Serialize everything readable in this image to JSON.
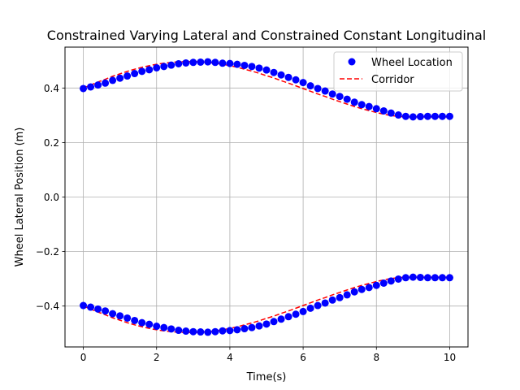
{
  "chart_data": {
    "type": "line",
    "title": "Constrained Varying Lateral and Constrained Constant Longitudinal",
    "xlabel": "Time(s)",
    "ylabel": "Wheel Lateral Position (m)",
    "xlim": [
      -0.5,
      10.5
    ],
    "ylim": [
      -0.55,
      0.55
    ],
    "xticks": [
      0,
      2,
      4,
      6,
      8,
      10
    ],
    "xtick_labels": [
      "0",
      "2",
      "4",
      "6",
      "8",
      "10"
    ],
    "yticks": [
      -0.4,
      -0.2,
      0.0,
      0.2,
      0.4
    ],
    "ytick_labels": [
      "−0.4",
      "−0.2",
      "0.0",
      "0.2",
      "0.4"
    ],
    "grid": true,
    "legend_position": "top-right",
    "legend": [
      {
        "label": "Wheel Location",
        "marker": "circle",
        "color": "#0000ff"
      },
      {
        "label": "Corridor",
        "linestyle": "dashed",
        "color": "#ff0000"
      }
    ],
    "x": [
      0.0,
      0.2,
      0.4,
      0.6,
      0.8,
      1.0,
      1.2,
      1.4,
      1.6,
      1.8,
      2.0,
      2.2,
      2.4,
      2.6,
      2.8,
      3.0,
      3.2,
      3.4,
      3.6,
      3.8,
      4.0,
      4.2,
      4.4,
      4.6,
      4.8,
      5.0,
      5.2,
      5.4,
      5.6,
      5.8,
      6.0,
      6.2,
      6.4,
      6.6,
      6.8,
      7.0,
      7.2,
      7.4,
      7.6,
      7.8,
      8.0,
      8.2,
      8.4,
      8.6,
      8.8,
      9.0,
      9.2,
      9.4,
      9.6,
      9.8,
      10.0
    ],
    "series": [
      {
        "name": "Wheel Location",
        "style": "markers",
        "color": "#0000ff",
        "values": [
          0.398,
          0.404,
          0.411,
          0.418,
          0.428,
          0.436,
          0.444,
          0.453,
          0.461,
          0.467,
          0.474,
          0.479,
          0.484,
          0.489,
          0.492,
          0.494,
          0.495,
          0.496,
          0.494,
          0.491,
          0.49,
          0.487,
          0.483,
          0.479,
          0.473,
          0.466,
          0.457,
          0.448,
          0.439,
          0.43,
          0.42,
          0.408,
          0.398,
          0.389,
          0.378,
          0.369,
          0.359,
          0.348,
          0.339,
          0.332,
          0.324,
          0.316,
          0.308,
          0.301,
          0.296,
          0.294,
          0.295,
          0.296,
          0.296,
          0.296,
          0.296
        ]
      },
      {
        "name": "Wheel Location",
        "style": "markers",
        "color": "#0000ff",
        "values": [
          -0.398,
          -0.404,
          -0.411,
          -0.418,
          -0.428,
          -0.436,
          -0.444,
          -0.453,
          -0.461,
          -0.467,
          -0.474,
          -0.479,
          -0.484,
          -0.489,
          -0.492,
          -0.494,
          -0.495,
          -0.496,
          -0.494,
          -0.491,
          -0.49,
          -0.487,
          -0.483,
          -0.479,
          -0.473,
          -0.466,
          -0.457,
          -0.448,
          -0.439,
          -0.43,
          -0.42,
          -0.408,
          -0.398,
          -0.389,
          -0.378,
          -0.369,
          -0.359,
          -0.348,
          -0.339,
          -0.332,
          -0.324,
          -0.316,
          -0.308,
          -0.301,
          -0.296,
          -0.294,
          -0.295,
          -0.296,
          -0.296,
          -0.296,
          -0.296
        ]
      },
      {
        "name": "Corridor",
        "style": "dashed",
        "color": "#ff0000",
        "values": [
          0.4,
          0.411,
          0.422,
          0.432,
          0.443,
          0.452,
          0.461,
          0.469,
          0.476,
          0.482,
          0.487,
          0.491,
          0.494,
          0.496,
          0.497,
          0.497,
          0.496,
          0.494,
          0.491,
          0.487,
          0.482,
          0.476,
          0.469,
          0.462,
          0.454,
          0.445,
          0.437,
          0.427,
          0.418,
          0.408,
          0.398,
          0.388,
          0.378,
          0.369,
          0.359,
          0.35,
          0.341,
          0.332,
          0.324,
          0.317,
          0.31,
          0.304,
          0.299,
          0.296,
          0.294,
          0.294,
          0.294,
          0.294,
          0.294,
          0.294,
          0.294
        ]
      },
      {
        "name": "Corridor",
        "style": "dashed",
        "color": "#ff0000",
        "values": [
          -0.4,
          -0.411,
          -0.422,
          -0.432,
          -0.443,
          -0.452,
          -0.461,
          -0.469,
          -0.476,
          -0.482,
          -0.487,
          -0.491,
          -0.494,
          -0.496,
          -0.497,
          -0.497,
          -0.496,
          -0.494,
          -0.491,
          -0.487,
          -0.482,
          -0.476,
          -0.469,
          -0.462,
          -0.454,
          -0.445,
          -0.437,
          -0.427,
          -0.418,
          -0.408,
          -0.398,
          -0.388,
          -0.378,
          -0.369,
          -0.359,
          -0.35,
          -0.341,
          -0.332,
          -0.324,
          -0.317,
          -0.31,
          -0.304,
          -0.299,
          -0.296,
          -0.294,
          -0.294,
          -0.294,
          -0.294,
          -0.294,
          -0.294,
          -0.294
        ]
      }
    ]
  }
}
